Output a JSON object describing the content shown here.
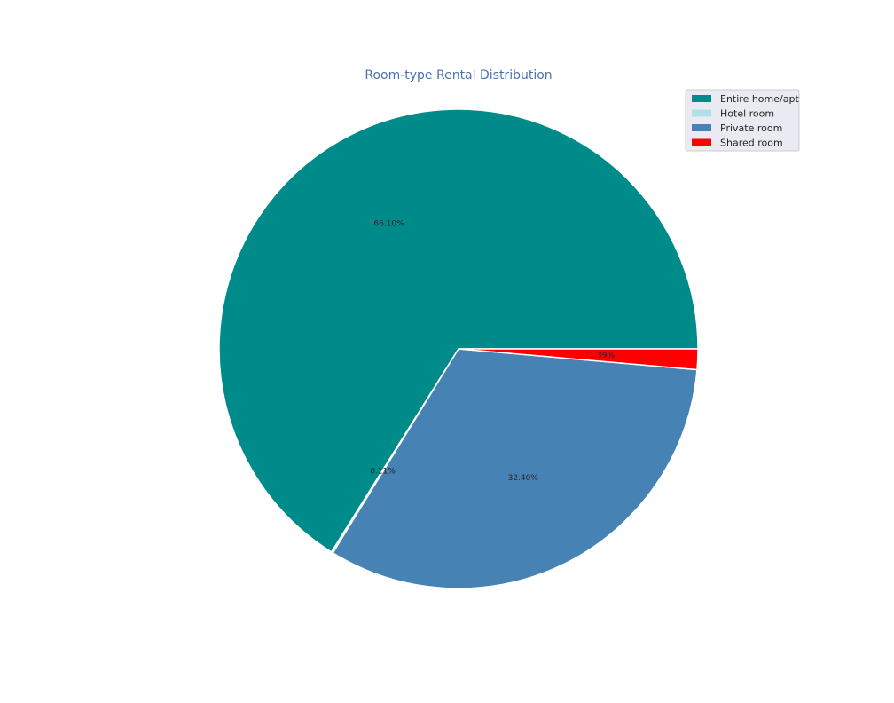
{
  "chart_data": {
    "type": "pie",
    "title": "Room-type Rental Distribution",
    "slices": [
      {
        "label": "Entire home/apt",
        "value": 66.1,
        "display": "66.10%",
        "color": "#008b8b"
      },
      {
        "label": "Hotel room",
        "value": 0.11,
        "display": "0.11%",
        "color": "#b0e0e6"
      },
      {
        "label": "Private room",
        "value": 32.4,
        "display": "32.40%",
        "color": "#4682b4"
      },
      {
        "label": "Shared room",
        "value": 1.39,
        "display": "1.39%",
        "color": "#ff0000"
      }
    ],
    "start_angle_deg": 0,
    "direction": "counterclockwise",
    "legend": {
      "position": "top-right",
      "background": "#eaeaf2",
      "border": "#cccccc"
    },
    "title_color": "#4c72b0"
  }
}
